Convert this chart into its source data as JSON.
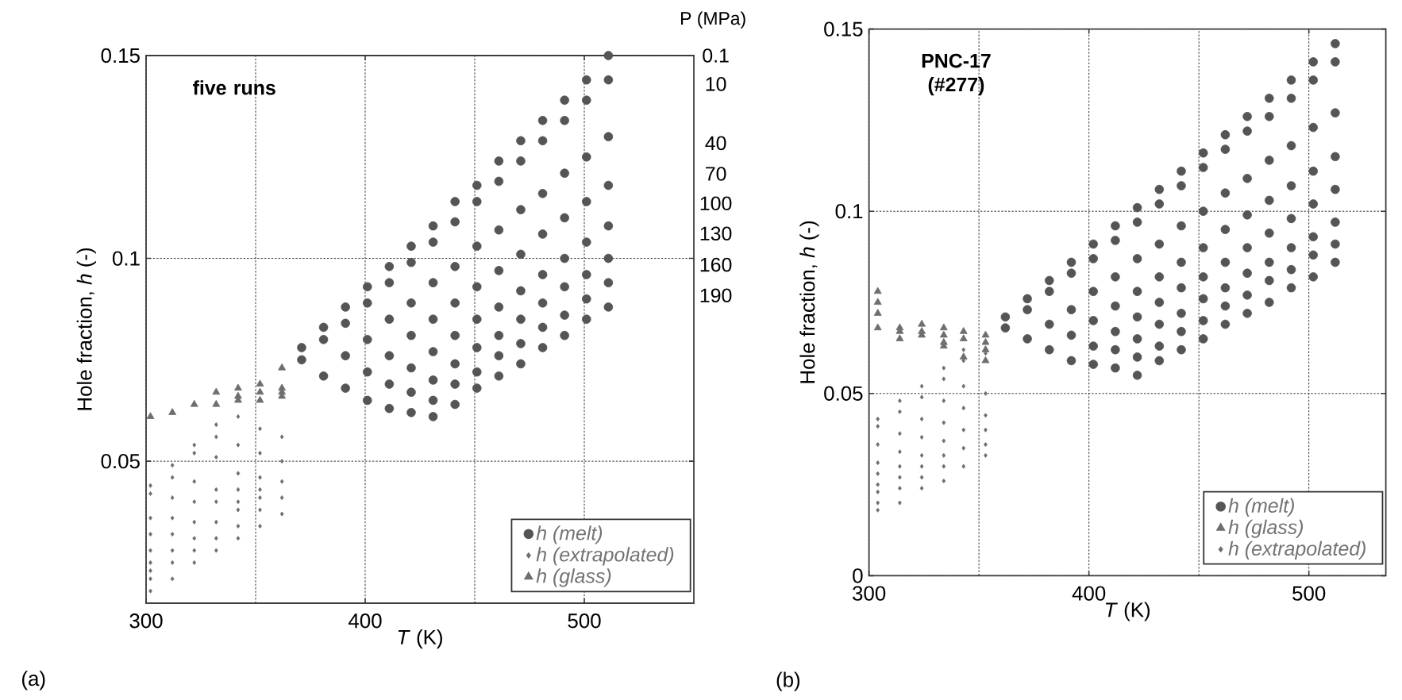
{
  "chart_data": [
    {
      "type": "scatter",
      "xlabel": "*T* (K)",
      "ylabel": "Hole fraction, *h* (-)",
      "xlim": [
        300,
        550
      ],
      "ylim": [
        0.015,
        0.15
      ],
      "xticks": [
        300,
        400,
        500
      ],
      "yticks": [
        0.05,
        0.1,
        0.15
      ],
      "grid": true,
      "legend": "bottom right",
      "annotations": [
        "(a)",
        "five runs",
        "P (MPa)",
        "0.1",
        "10",
        "40",
        "70",
        "100",
        "130",
        "160",
        "190"
      ],
      "series": [
        {
          "name": "h (melt)",
          "color": "#555555",
          "marker": "circle",
          "x": [
            371,
            381,
            391,
            401,
            411,
            421,
            431,
            441,
            451,
            461,
            471,
            481,
            491,
            501,
            511,
            371,
            381,
            391,
            401,
            411,
            421,
            431,
            441,
            451,
            461,
            471,
            481,
            491,
            501,
            511,
            381,
            391,
            401,
            411,
            421,
            431,
            441,
            451,
            461,
            471,
            481,
            491,
            501,
            511,
            391,
            401,
            411,
            421,
            431,
            441,
            451,
            461,
            471,
            481,
            491,
            501,
            511,
            401,
            411,
            421,
            431,
            441,
            451,
            461,
            471,
            481,
            491,
            501,
            511,
            411,
            421,
            431,
            441,
            451,
            461,
            471,
            481,
            491,
            501,
            511,
            421,
            431,
            441,
            451,
            461,
            471,
            481,
            491,
            501,
            511,
            431,
            441,
            451,
            461,
            471,
            481,
            491,
            501,
            511
          ],
          "values": [
            0.078,
            0.083,
            0.088,
            0.093,
            0.098,
            0.103,
            0.108,
            0.114,
            0.118,
            0.124,
            0.129,
            0.134,
            0.139,
            0.144,
            0.15,
            0.075,
            0.08,
            0.084,
            0.089,
            0.094,
            0.099,
            0.104,
            0.109,
            0.114,
            0.119,
            0.124,
            0.129,
            0.134,
            0.139,
            0.144,
            0.071,
            0.076,
            0.08,
            0.085,
            0.089,
            0.094,
            0.098,
            0.103,
            0.107,
            0.112,
            0.116,
            0.121,
            0.125,
            0.13,
            0.068,
            0.072,
            0.076,
            0.081,
            0.085,
            0.089,
            0.093,
            0.097,
            0.101,
            0.106,
            0.11,
            0.114,
            0.118,
            0.065,
            0.069,
            0.073,
            0.077,
            0.081,
            0.085,
            0.088,
            0.092,
            0.096,
            0.1,
            0.104,
            0.108,
            0.063,
            0.067,
            0.07,
            0.074,
            0.078,
            0.081,
            0.085,
            0.089,
            0.093,
            0.096,
            0.1,
            0.062,
            0.065,
            0.069,
            0.072,
            0.076,
            0.079,
            0.083,
            0.086,
            0.09,
            0.094,
            0.061,
            0.064,
            0.068,
            0.071,
            0.074,
            0.078,
            0.081,
            0.085,
            0.088
          ]
        },
        {
          "name": "h (extrapolated)",
          "color": "#6e6e6e",
          "marker": "diamond",
          "x": [
            302,
            302,
            302,
            302,
            302,
            302,
            302,
            302,
            302,
            312,
            312,
            312,
            312,
            312,
            312,
            312,
            312,
            322,
            322,
            322,
            322,
            322,
            322,
            322,
            322,
            332,
            332,
            332,
            332,
            332,
            332,
            332,
            332,
            342,
            342,
            342,
            342,
            342,
            342,
            342,
            342,
            352,
            352,
            352,
            352,
            352,
            352,
            352,
            362,
            362,
            362,
            362,
            362
          ],
          "values": [
            0.044,
            0.042,
            0.036,
            0.032,
            0.028,
            0.025,
            0.023,
            0.021,
            0.018,
            0.049,
            0.046,
            0.041,
            0.036,
            0.032,
            0.028,
            0.025,
            0.021,
            0.054,
            0.052,
            0.045,
            0.04,
            0.035,
            0.031,
            0.028,
            0.025,
            0.059,
            0.056,
            0.051,
            0.043,
            0.04,
            0.035,
            0.031,
            0.028,
            0.061,
            0.054,
            0.047,
            0.043,
            0.04,
            0.038,
            0.034,
            0.031,
            0.058,
            0.052,
            0.046,
            0.043,
            0.041,
            0.038,
            0.034,
            0.056,
            0.05,
            0.045,
            0.041,
            0.037
          ]
        },
        {
          "name": "h (glass)",
          "color": "#6e6e6e",
          "marker": "triangle",
          "x": [
            302,
            312,
            322,
            332,
            332,
            342,
            342,
            342,
            352,
            352,
            352,
            362,
            362,
            362,
            362
          ],
          "values": [
            0.061,
            0.062,
            0.064,
            0.067,
            0.064,
            0.068,
            0.066,
            0.065,
            0.069,
            0.067,
            0.065,
            0.073,
            0.068,
            0.067,
            0.066
          ]
        }
      ]
    },
    {
      "type": "scatter",
      "xlabel": "*T* (K)",
      "ylabel": "Hole fraction, *h* (-)",
      "xlim": [
        300,
        535
      ],
      "ylim": [
        0,
        0.15
      ],
      "xticks": [
        300,
        400,
        500
      ],
      "yticks": [
        0,
        0.05,
        0.1,
        0.15
      ],
      "grid": true,
      "legend": "bottom right",
      "annotations": [
        "(b)",
        "PNC-17 (#277)"
      ],
      "series": [
        {
          "name": "h (melt)",
          "color": "#555555",
          "marker": "circle",
          "x": [
            362,
            372,
            382,
            392,
            402,
            412,
            422,
            432,
            442,
            452,
            462,
            472,
            482,
            492,
            502,
            512,
            362,
            372,
            382,
            392,
            402,
            412,
            422,
            432,
            442,
            452,
            462,
            472,
            482,
            492,
            502,
            512,
            372,
            382,
            392,
            402,
            412,
            422,
            432,
            442,
            452,
            462,
            472,
            482,
            492,
            502,
            512,
            382,
            392,
            402,
            412,
            422,
            432,
            442,
            452,
            462,
            472,
            482,
            492,
            502,
            512,
            392,
            402,
            412,
            422,
            432,
            442,
            452,
            462,
            472,
            482,
            492,
            502,
            512,
            402,
            412,
            422,
            432,
            442,
            452,
            462,
            472,
            482,
            492,
            502,
            512,
            412,
            422,
            432,
            442,
            452,
            462,
            472,
            482,
            492,
            502,
            512,
            422,
            432,
            442,
            452,
            462,
            472,
            482,
            492,
            502,
            512
          ],
          "values": [
            0.071,
            0.076,
            0.081,
            0.086,
            0.091,
            0.096,
            0.101,
            0.106,
            0.111,
            0.116,
            0.121,
            0.126,
            0.131,
            0.136,
            0.141,
            0.146,
            0.068,
            0.073,
            0.078,
            0.083,
            0.087,
            0.092,
            0.097,
            0.102,
            0.107,
            0.112,
            0.117,
            0.122,
            0.126,
            0.131,
            0.136,
            0.141,
            0.065,
            0.069,
            0.073,
            0.078,
            0.082,
            0.087,
            0.091,
            0.096,
            0.1,
            0.105,
            0.109,
            0.114,
            0.118,
            0.123,
            0.127,
            0.062,
            0.066,
            0.07,
            0.074,
            0.078,
            0.082,
            0.086,
            0.09,
            0.095,
            0.099,
            0.103,
            0.107,
            0.111,
            0.115,
            0.059,
            0.063,
            0.067,
            0.071,
            0.075,
            0.079,
            0.082,
            0.086,
            0.09,
            0.094,
            0.098,
            0.102,
            0.106,
            0.058,
            0.062,
            0.065,
            0.069,
            0.072,
            0.076,
            0.079,
            0.083,
            0.086,
            0.09,
            0.093,
            0.097,
            0.057,
            0.06,
            0.063,
            0.067,
            0.07,
            0.074,
            0.077,
            0.081,
            0.084,
            0.088,
            0.091,
            0.055,
            0.059,
            0.062,
            0.065,
            0.069,
            0.072,
            0.075,
            0.079,
            0.082,
            0.086
          ]
        },
        {
          "name": "h (glass)",
          "color": "#6e6e6e",
          "marker": "triangle",
          "x": [
            304,
            304,
            304,
            304,
            314,
            314,
            314,
            324,
            324,
            324,
            334,
            334,
            334,
            334,
            343,
            343,
            343,
            353,
            353,
            353,
            353
          ],
          "values": [
            0.078,
            0.075,
            0.072,
            0.068,
            0.068,
            0.067,
            0.065,
            0.069,
            0.067,
            0.066,
            0.068,
            0.066,
            0.064,
            0.063,
            0.067,
            0.065,
            0.06,
            0.066,
            0.064,
            0.062,
            0.059
          ]
        },
        {
          "name": "h (extrapolated)",
          "color": "#6e6e6e",
          "marker": "diamond",
          "x": [
            304,
            304,
            304,
            304,
            304,
            304,
            304,
            304,
            304,
            314,
            314,
            314,
            314,
            314,
            314,
            314,
            314,
            324,
            324,
            324,
            324,
            324,
            324,
            324,
            324,
            334,
            334,
            334,
            334,
            334,
            334,
            334,
            334,
            343,
            343,
            343,
            343,
            343,
            343,
            343,
            353,
            353,
            353,
            353,
            353,
            353
          ],
          "values": [
            0.043,
            0.041,
            0.036,
            0.031,
            0.028,
            0.025,
            0.023,
            0.02,
            0.018,
            0.048,
            0.045,
            0.039,
            0.034,
            0.03,
            0.027,
            0.024,
            0.02,
            0.052,
            0.049,
            0.043,
            0.038,
            0.033,
            0.03,
            0.027,
            0.024,
            0.057,
            0.054,
            0.048,
            0.042,
            0.037,
            0.033,
            0.03,
            0.026,
            0.062,
            0.059,
            0.052,
            0.046,
            0.04,
            0.035,
            0.03,
            0.061,
            0.05,
            0.044,
            0.04,
            0.036,
            0.033
          ]
        }
      ]
    }
  ]
}
